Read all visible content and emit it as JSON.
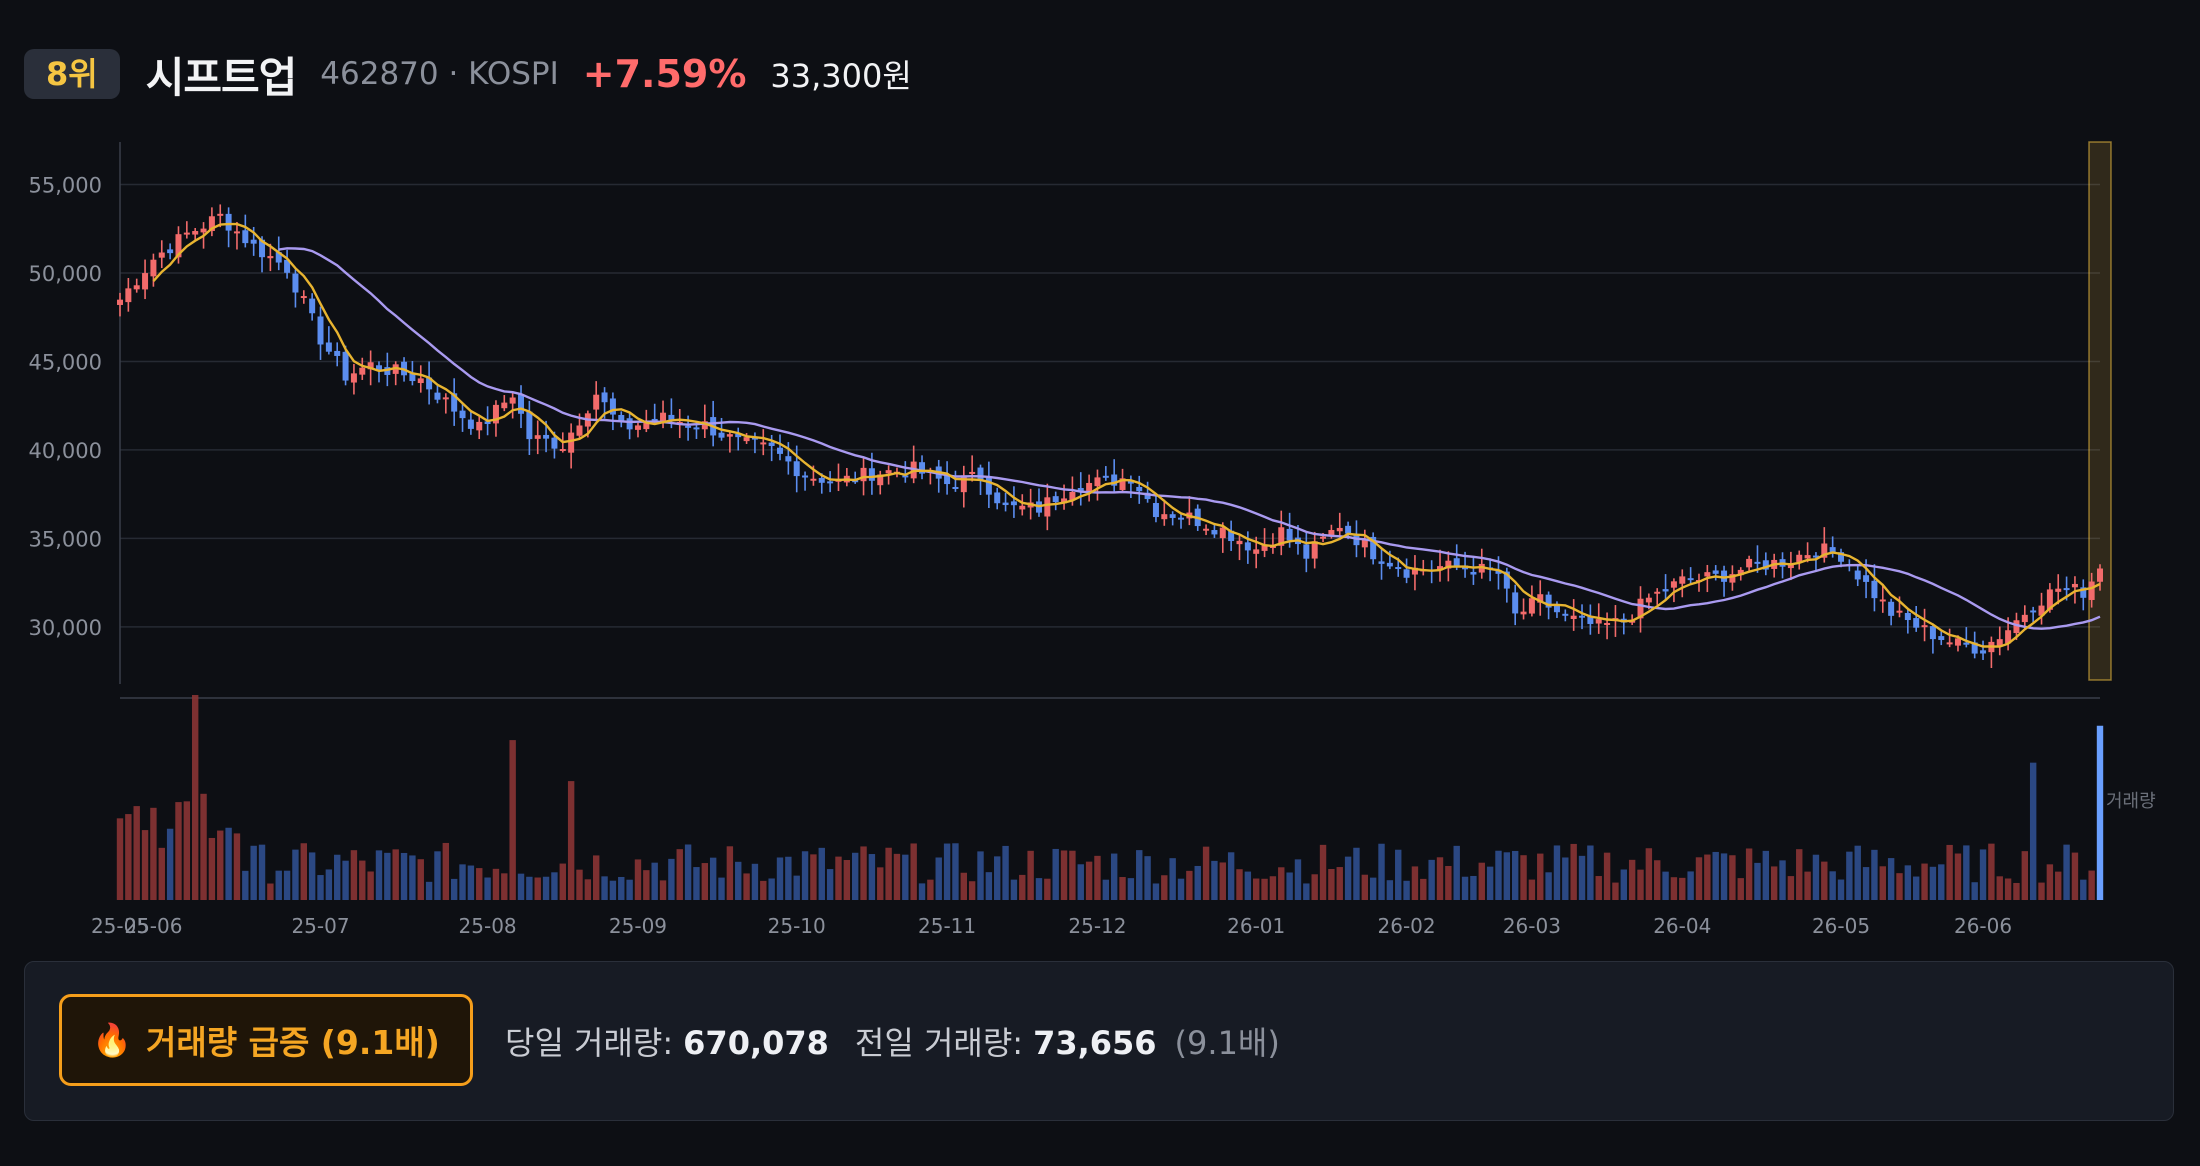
{
  "header": {
    "rank": "8위",
    "name": "시프트업",
    "code_market": "462870 · KOSPI",
    "change": "+7.59%",
    "price": "33,300원"
  },
  "footer": {
    "surge_icon": "fire-icon",
    "surge_label": "거래량 급증 (9.1배)",
    "today_label": "당일 거래량:",
    "today_value": "670,078",
    "prev_label": "전일 거래량:",
    "prev_value": "73,656",
    "ratio": "(9.1배)"
  },
  "colors": {
    "up": "#f26b6b",
    "down": "#5b8def",
    "ma_short": "#e8b430",
    "ma_long": "#a99af0",
    "highlight": "#f5c542"
  },
  "chart_data": {
    "type": "candlestick",
    "title": "",
    "volume_label": "거래량",
    "y_ticks": [
      "55,000",
      "50,000",
      "45,000",
      "40,000",
      "35,000",
      "30,000"
    ],
    "y_tick_values": [
      55000,
      50000,
      45000,
      40000,
      35000,
      30000
    ],
    "ylim": [
      27000,
      57400
    ],
    "x_tick_labels": [
      "25-05",
      "25-06",
      "25-07",
      "25-08",
      "25-09",
      "25-10",
      "25-11",
      "25-12",
      "26-01",
      "26-02",
      "26-03",
      "26-04",
      "26-05",
      "26-06"
    ],
    "x_tick_index": [
      0,
      4,
      24,
      44,
      62,
      81,
      99,
      117,
      136,
      154,
      169,
      187,
      206,
      223
    ],
    "close_anchors": [
      [
        0,
        48500
      ],
      [
        4,
        50800
      ],
      [
        8,
        52200
      ],
      [
        12,
        53200
      ],
      [
        16,
        51500
      ],
      [
        20,
        50300
      ],
      [
        24,
        46300
      ],
      [
        27,
        44200
      ],
      [
        30,
        44800
      ],
      [
        36,
        44000
      ],
      [
        40,
        42300
      ],
      [
        43,
        41200
      ],
      [
        47,
        43200
      ],
      [
        49,
        40700
      ],
      [
        53,
        40300
      ],
      [
        57,
        43200
      ],
      [
        60,
        41200
      ],
      [
        65,
        41800
      ],
      [
        70,
        41400
      ],
      [
        74,
        40400
      ],
      [
        78,
        40000
      ],
      [
        82,
        38600
      ],
      [
        86,
        38200
      ],
      [
        90,
        38700
      ],
      [
        95,
        38900
      ],
      [
        99,
        38100
      ],
      [
        103,
        38500
      ],
      [
        106,
        36700
      ],
      [
        110,
        36700
      ],
      [
        114,
        38000
      ],
      [
        118,
        38200
      ],
      [
        121,
        38500
      ],
      [
        124,
        36600
      ],
      [
        128,
        36200
      ],
      [
        132,
        35500
      ],
      [
        136,
        34400
      ],
      [
        139,
        35400
      ],
      [
        142,
        34000
      ],
      [
        146,
        35800
      ],
      [
        150,
        34200
      ],
      [
        154,
        33200
      ],
      [
        158,
        33400
      ],
      [
        162,
        33300
      ],
      [
        165,
        33000
      ],
      [
        167,
        30600
      ],
      [
        170,
        31500
      ],
      [
        173,
        30500
      ],
      [
        177,
        30000
      ],
      [
        180,
        30300
      ],
      [
        183,
        31600
      ],
      [
        187,
        32600
      ],
      [
        191,
        32800
      ],
      [
        195,
        33400
      ],
      [
        199,
        33700
      ],
      [
        203,
        34400
      ],
      [
        206,
        34100
      ],
      [
        209,
        32400
      ],
      [
        212,
        30800
      ],
      [
        216,
        29800
      ],
      [
        220,
        29000
      ],
      [
        223,
        28800
      ],
      [
        226,
        29900
      ],
      [
        229,
        31300
      ],
      [
        232,
        32200
      ],
      [
        235,
        32000
      ],
      [
        237,
        33300
      ]
    ],
    "volume_spikes": {
      "9": 1.0,
      "47": 0.78,
      "54": 0.58,
      "205": 0.14,
      "229": 0.67,
      "237": 0.85
    },
    "ma_short_period": 5,
    "ma_long_period": 20
  }
}
